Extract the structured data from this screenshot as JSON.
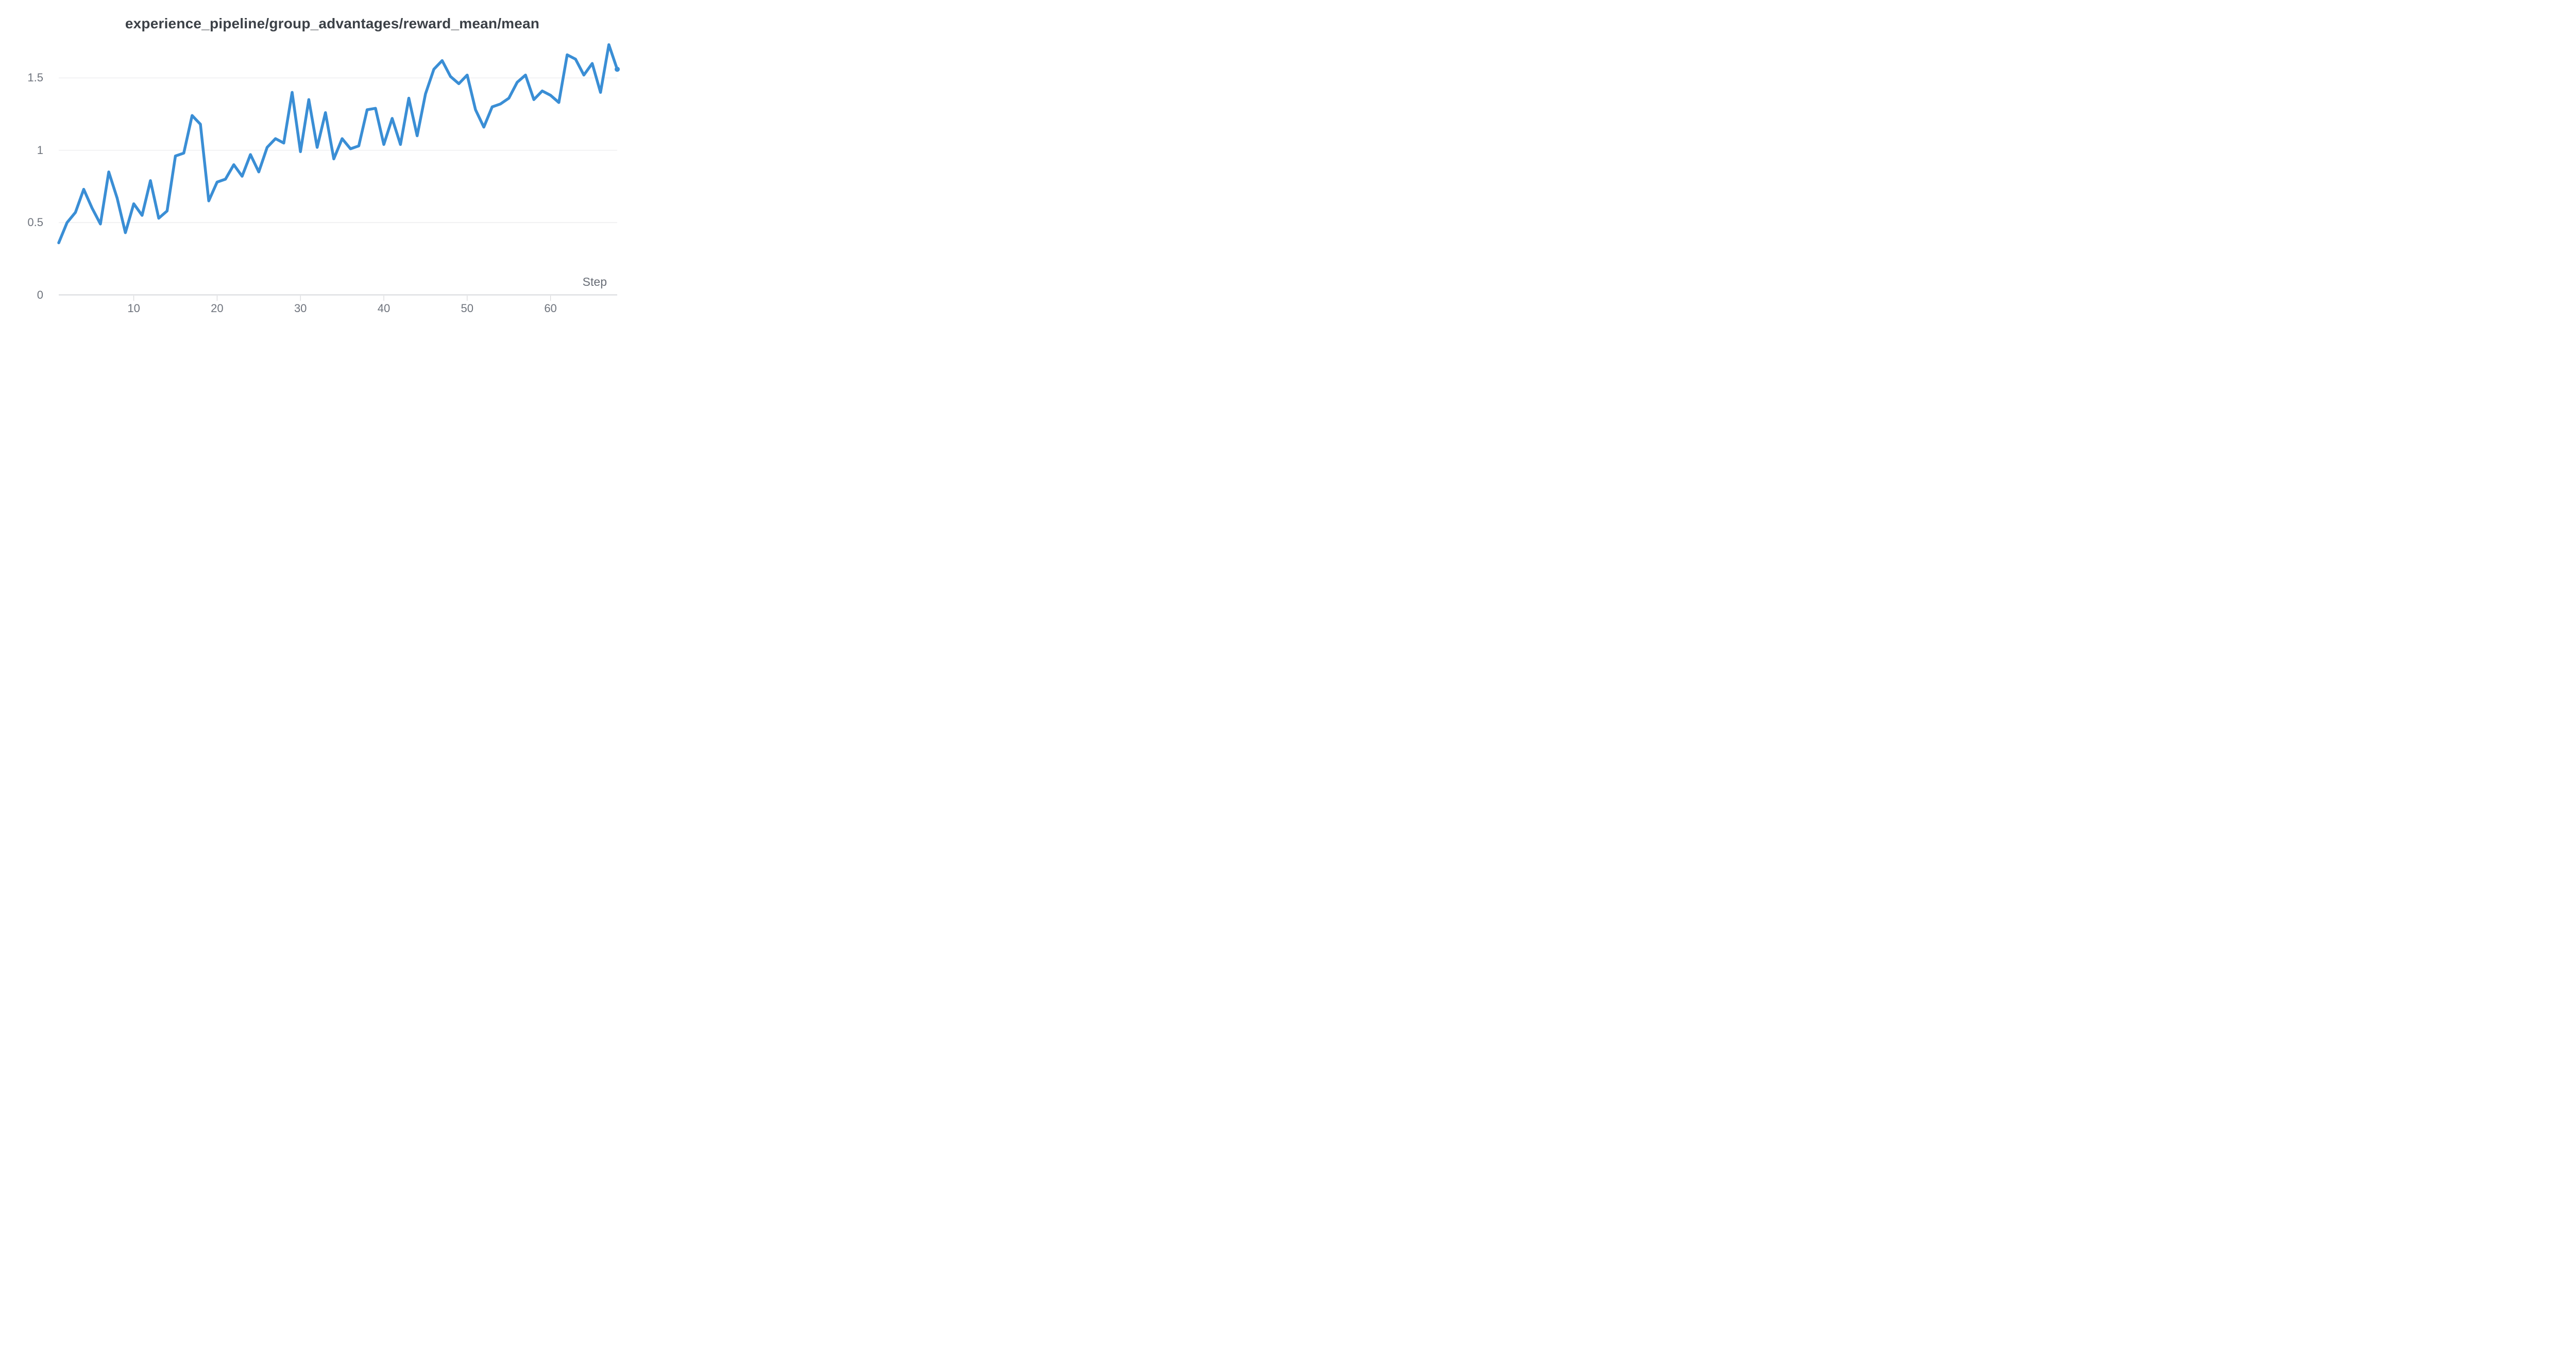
{
  "title": "experience_pipeline/group_advantages/reward_mean/mean",
  "x_axis": {
    "label": "Step",
    "tick_labels": [
      "10",
      "20",
      "30",
      "40",
      "50",
      "60"
    ],
    "tick_steps": [
      10,
      20,
      30,
      40,
      50,
      60
    ]
  },
  "y_axis": {
    "tick_labels": [
      "0",
      "0.5",
      "1",
      "1.5"
    ],
    "tick_values": [
      0,
      0.5,
      1,
      1.5
    ]
  },
  "colors": {
    "line": "#3a8ed5",
    "end_dot": "#3a8ed5",
    "title_text": "#3c4147",
    "axis_text": "#6e737c",
    "step_label_text": "#686d76",
    "gridline": "#e9eaec",
    "axis_line": "#dfe0e3",
    "tick_mark": "#d6d7d9",
    "background": "#ffffff"
  },
  "chart_data": {
    "type": "line",
    "title": "experience_pipeline/group_advantages/reward_mean/mean",
    "xlabel": "Step",
    "ylabel": "",
    "x": [
      1,
      2,
      3,
      4,
      5,
      6,
      7,
      8,
      9,
      10,
      11,
      12,
      13,
      14,
      15,
      16,
      17,
      18,
      19,
      20,
      21,
      22,
      23,
      24,
      25,
      26,
      27,
      28,
      29,
      30,
      31,
      32,
      33,
      34,
      35,
      36,
      37,
      38,
      39,
      40,
      41,
      42,
      43,
      44,
      45,
      46,
      47,
      48,
      49,
      50,
      51,
      52,
      53,
      54,
      55,
      56,
      57,
      58,
      59,
      60,
      61,
      62,
      63,
      64,
      65,
      66,
      67,
      68
    ],
    "values": [
      0.36,
      0.5,
      0.57,
      0.73,
      0.6,
      0.49,
      0.85,
      0.67,
      0.43,
      0.63,
      0.55,
      0.79,
      0.53,
      0.58,
      0.96,
      0.98,
      1.24,
      1.18,
      0.65,
      0.78,
      0.8,
      0.9,
      0.82,
      0.97,
      0.85,
      1.02,
      1.08,
      1.05,
      1.4,
      0.99,
      1.35,
      1.02,
      1.26,
      0.94,
      1.08,
      1.01,
      1.03,
      1.28,
      1.29,
      1.04,
      1.22,
      1.04,
      1.36,
      1.1,
      1.39,
      1.56,
      1.62,
      1.51,
      1.46,
      1.52,
      1.28,
      1.16,
      1.3,
      1.32,
      1.36,
      1.47,
      1.52,
      1.35,
      1.41,
      1.38,
      1.33,
      1.66,
      1.63,
      1.52,
      1.6,
      1.4,
      1.73,
      1.56
    ],
    "ylim": [
      0,
      1.77
    ],
    "xlim": [
      1,
      68
    ],
    "grid": "horizontal-only",
    "legend": "none",
    "end_marker": "dot"
  }
}
